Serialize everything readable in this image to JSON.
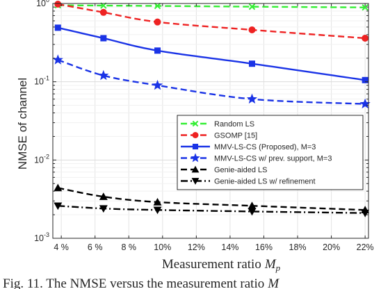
{
  "chart_data": {
    "type": "line",
    "x_tick_labels": [
      "4 %",
      "6 %",
      "8 %",
      "10%",
      "12%",
      "14%",
      "16%",
      "18%",
      "20%",
      "22%"
    ],
    "xlim": [
      3.5,
      22.2
    ],
    "ylim": [
      0.001,
      1
    ],
    "y_scale": "log",
    "y_ticks": [
      {
        "value": 0.001,
        "base": "10",
        "exp": "-3"
      },
      {
        "value": 0.01,
        "base": "10",
        "exp": "-2"
      },
      {
        "value": 0.1,
        "base": "10",
        "exp": "-1"
      },
      {
        "value": 1,
        "base": "10",
        "exp": "0"
      }
    ],
    "xlabel": "Measurement ratio",
    "xlabel_symbol": "M",
    "xlabel_sub": "p",
    "ylabel": "NMSE of channel",
    "grid": true,
    "legend_position": "bottom-right",
    "caption": "Fig. 11.  The NMSE versus the measurement ratio",
    "caption_symbol": "M",
    "series": [
      {
        "name": "Random LS",
        "color": "#33ee33",
        "dash": "dashed",
        "marker": "x",
        "x": [
          3.8,
          6.5,
          9.7,
          15.3,
          22.0
        ],
        "y": [
          0.95,
          0.94,
          0.93,
          0.91,
          0.89
        ]
      },
      {
        "name": "GSOMP [15]",
        "color": "#ee2222",
        "dash": "dashed",
        "marker": "circle",
        "x": [
          3.8,
          6.5,
          9.7,
          15.3,
          22.0
        ],
        "y": [
          0.98,
          0.77,
          0.58,
          0.46,
          0.36
        ]
      },
      {
        "name": "MMV-LS-CS (Proposed), M=3",
        "color": "#1a33e6",
        "dash": "solid",
        "marker": "square",
        "x": [
          3.8,
          6.5,
          9.7,
          15.3,
          22.0
        ],
        "y": [
          0.49,
          0.36,
          0.25,
          0.17,
          0.105
        ]
      },
      {
        "name": "MMV-LS-CS w/ prev. support, M=3",
        "color": "#1a33e6",
        "dash": "dashed",
        "marker": "star",
        "x": [
          3.8,
          6.5,
          9.7,
          15.3,
          22.0
        ],
        "y": [
          0.19,
          0.12,
          0.09,
          0.06,
          0.052
        ]
      },
      {
        "name": "Genie-aided LS",
        "color": "#000000",
        "dash": "dashed",
        "marker": "triangle-up",
        "x": [
          3.8,
          6.5,
          9.7,
          15.3,
          22.0
        ],
        "y": [
          0.0044,
          0.0034,
          0.0029,
          0.0026,
          0.0023
        ]
      },
      {
        "name": "Genie-aided LS w/ refinement",
        "color": "#000000",
        "dash": "dashdot",
        "marker": "triangle-down",
        "x": [
          3.8,
          6.5,
          9.7,
          15.3,
          22.0
        ],
        "y": [
          0.0026,
          0.0024,
          0.0023,
          0.0022,
          0.0021
        ]
      }
    ]
  }
}
